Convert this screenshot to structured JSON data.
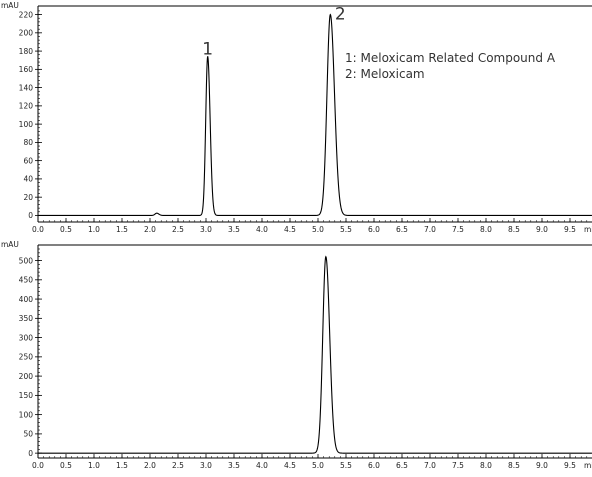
{
  "chart_data": [
    {
      "type": "line",
      "ylabel": "mAU",
      "xlabel": "min",
      "xlim": [
        0.0,
        10.0
      ],
      "ylim": [
        -5,
        225
      ],
      "x_ticks": [
        "0.0",
        "0.5",
        "1.0",
        "1.5",
        "2.0",
        "2.5",
        "3.0",
        "3.5",
        "4.0",
        "4.5",
        "5.0",
        "5.5",
        "6.0",
        "6.5",
        "7.0",
        "7.5",
        "8.0",
        "8.5",
        "9.0",
        "9.5"
      ],
      "y_ticks": [
        "0",
        "20",
        "40",
        "60",
        "80",
        "100",
        "120",
        "140",
        "160",
        "180",
        "200",
        "220"
      ],
      "peaks": [
        {
          "label": "1",
          "rt": 3.03,
          "height": 174,
          "width": 0.035
        },
        {
          "label": "2",
          "rt": 5.22,
          "height": 220,
          "width": 0.06
        }
      ],
      "minor_peaks": [
        {
          "rt": 2.12,
          "height": 2.5,
          "width": 0.03
        }
      ],
      "legend": [
        "1: Meloxicam Related Compound A",
        "2: Meloxicam"
      ]
    },
    {
      "type": "line",
      "ylabel": "mAU",
      "xlabel": "min",
      "xlim": [
        0.0,
        10.0
      ],
      "ylim": [
        -10,
        530
      ],
      "x_ticks": [
        "0.0",
        "0.5",
        "1.0",
        "1.5",
        "2.0",
        "2.5",
        "3.0",
        "3.5",
        "4.0",
        "4.5",
        "5.0",
        "5.5",
        "6.0",
        "6.5",
        "7.0",
        "7.5",
        "8.0",
        "8.5",
        "9.0",
        "9.5"
      ],
      "y_ticks": [
        "0",
        "50",
        "100",
        "150",
        "200",
        "250",
        "300",
        "350",
        "400",
        "450",
        "500"
      ],
      "peaks": [
        {
          "label": "",
          "rt": 5.14,
          "height": 510,
          "width": 0.055
        }
      ],
      "minor_peaks": [],
      "legend": []
    }
  ]
}
